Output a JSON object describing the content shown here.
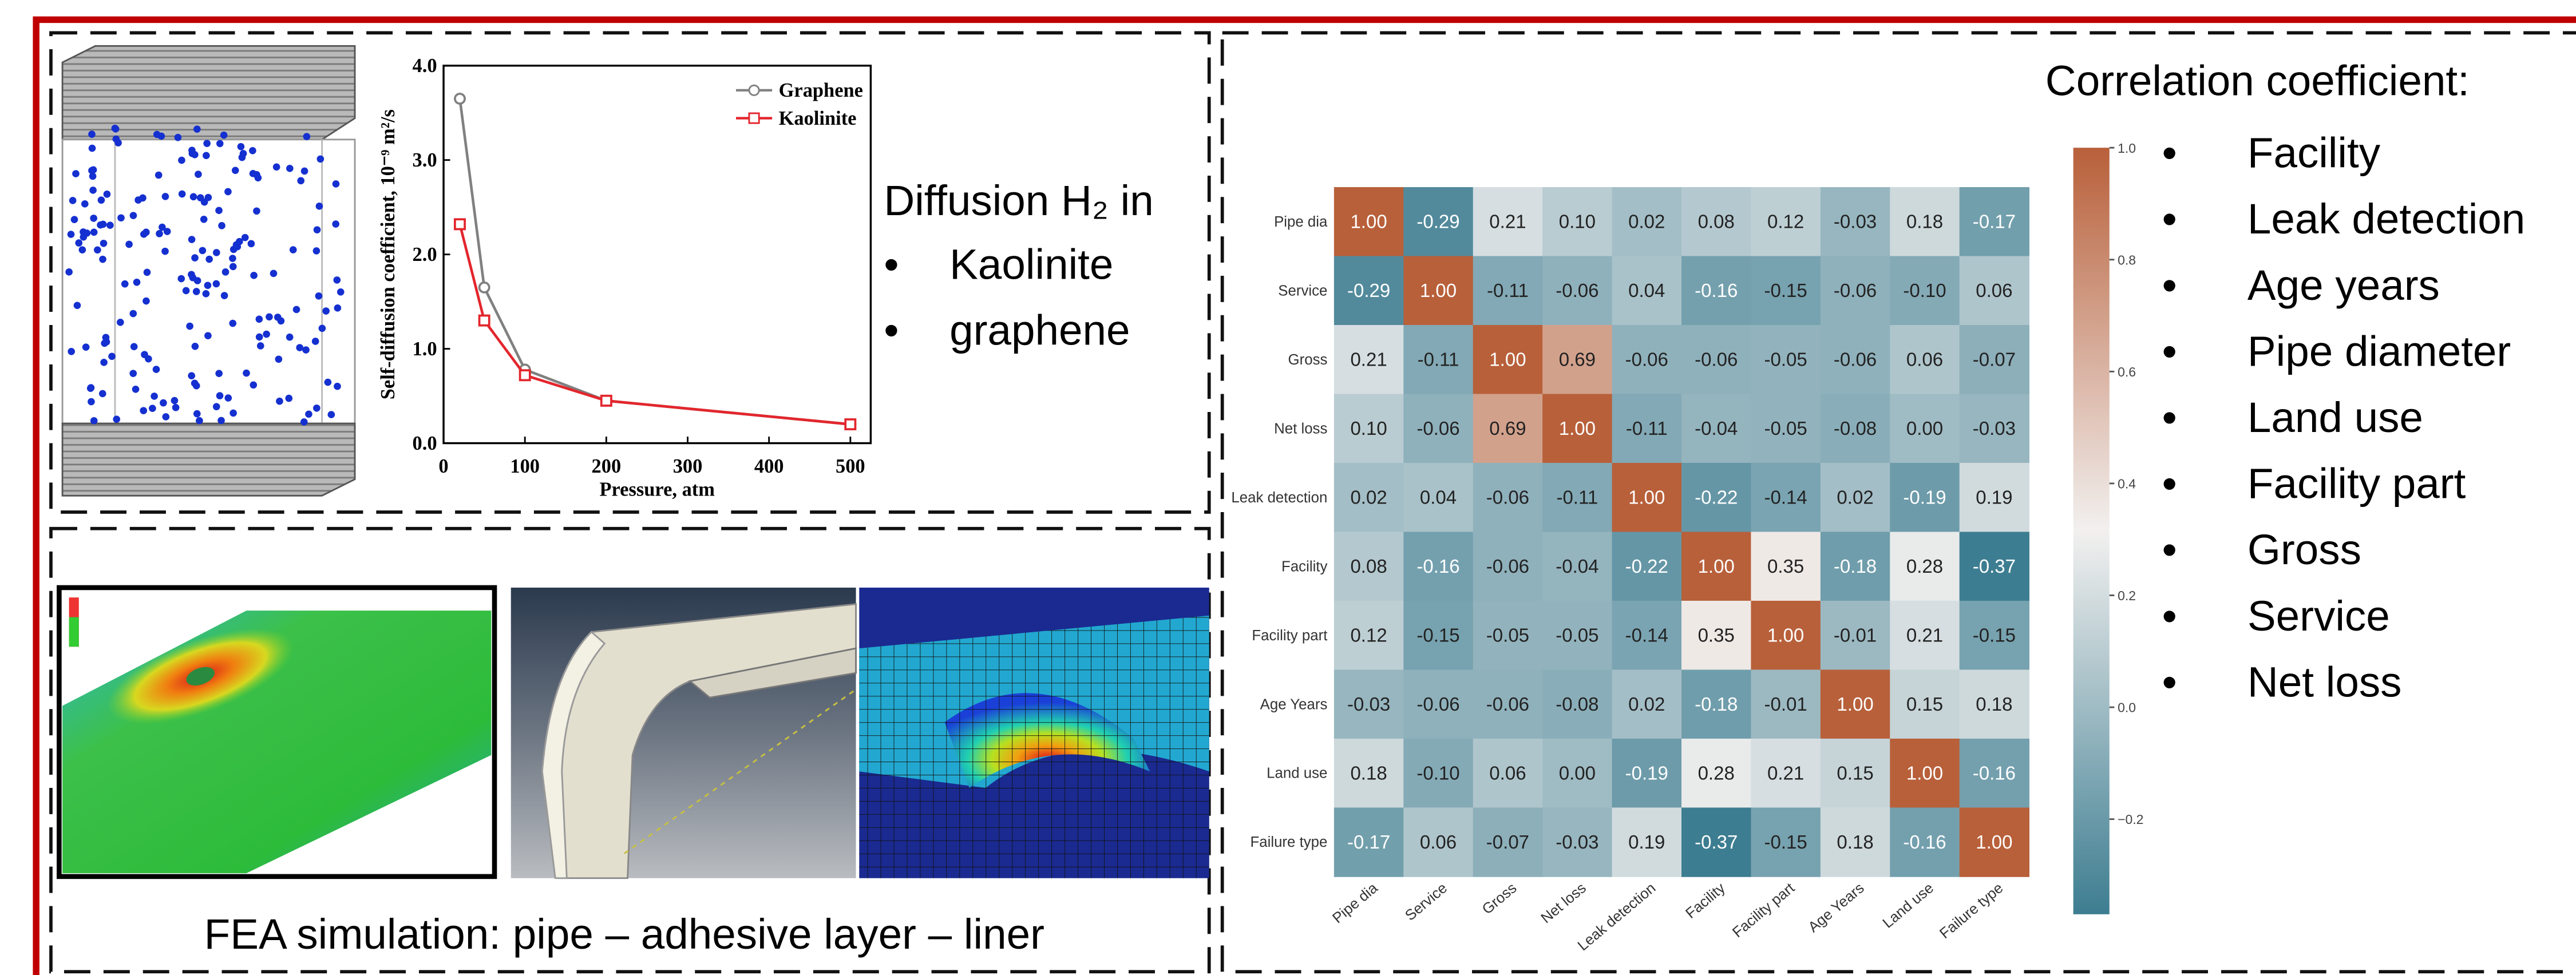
{
  "chart_data": [
    {
      "type": "line",
      "y_label": "Self-diffusion coefficient, 10⁻⁹ m²/s",
      "x_label": "Pressure, atm",
      "x": [
        20,
        50,
        100,
        200,
        500
      ],
      "xlim": [
        0,
        525
      ],
      "xticks": [
        0,
        100,
        200,
        300,
        400,
        500
      ],
      "ylim": [
        0,
        4
      ],
      "yticks": [
        {
          "value": 0,
          "label": "0.0"
        },
        {
          "value": 1,
          "label": "1.0"
        },
        {
          "value": 2,
          "label": "2.0"
        },
        {
          "value": 3,
          "label": "3.0"
        },
        {
          "value": 4,
          "label": "4.0"
        }
      ],
      "legend": "upper right",
      "series": [
        {
          "name": "Graphene",
          "color": "#808080",
          "marker": "circle",
          "values": [
            3.65,
            1.65,
            0.78,
            0.45,
            0.2
          ]
        },
        {
          "name": "Kaolinite",
          "color": "#e3262d",
          "marker": "square",
          "values": [
            2.32,
            1.3,
            0.72,
            0.45,
            0.2
          ]
        }
      ]
    },
    {
      "type": "heatmap",
      "categories": [
        "Pipe dia",
        "Service",
        "Gross",
        "Net loss",
        "Leak detection",
        "Facility",
        "Facility part",
        "Age Years",
        "Land use",
        "Failure type"
      ],
      "values": [
        [
          1.0,
          -0.29,
          0.21,
          0.1,
          0.02,
          0.08,
          0.12,
          -0.03,
          0.18,
          -0.17
        ],
        [
          -0.29,
          1.0,
          -0.11,
          -0.06,
          0.04,
          -0.16,
          -0.15,
          -0.06,
          -0.1,
          0.06
        ],
        [
          0.21,
          -0.11,
          1.0,
          0.69,
          -0.06,
          -0.06,
          -0.05,
          -0.06,
          0.06,
          -0.07
        ],
        [
          0.1,
          -0.06,
          0.69,
          1.0,
          -0.11,
          -0.04,
          -0.05,
          -0.08,
          0.0,
          -0.03
        ],
        [
          0.02,
          0.04,
          -0.06,
          -0.11,
          1.0,
          -0.22,
          -0.14,
          0.02,
          -0.19,
          0.19
        ],
        [
          0.08,
          -0.16,
          -0.06,
          -0.04,
          -0.22,
          1.0,
          0.35,
          -0.18,
          0.28,
          -0.37
        ],
        [
          0.12,
          -0.15,
          -0.05,
          -0.05,
          -0.14,
          0.35,
          1.0,
          -0.01,
          0.21,
          -0.15
        ],
        [
          -0.03,
          -0.06,
          -0.06,
          -0.08,
          0.02,
          -0.18,
          -0.01,
          1.0,
          0.15,
          0.18
        ],
        [
          0.18,
          -0.1,
          0.06,
          0.0,
          -0.19,
          0.28,
          0.21,
          0.15,
          1.0,
          -0.16
        ],
        [
          -0.17,
          0.06,
          -0.07,
          -0.03,
          0.19,
          -0.37,
          -0.15,
          0.18,
          -0.16,
          1.0
        ]
      ],
      "value_labels": [
        [
          "1.00",
          "-0.29",
          "0.21",
          "0.10",
          "0.02",
          "0.08",
          "0.12",
          "-0.03",
          "0.18",
          "-0.17"
        ],
        [
          "-0.29",
          "1.00",
          "-0.11",
          "-0.06",
          "0.04",
          "-0.16",
          "-0.15",
          "-0.06",
          "-0.10",
          "0.06"
        ],
        [
          "0.21",
          "-0.11",
          "1.00",
          "0.69",
          "-0.06",
          "-0.06",
          "-0.05",
          "-0.06",
          "0.06",
          "-0.07"
        ],
        [
          "0.10",
          "-0.06",
          "0.69",
          "1.00",
          "-0.11",
          "-0.04",
          "-0.05",
          "-0.08",
          "0.00",
          "-0.03"
        ],
        [
          "0.02",
          "0.04",
          "-0.06",
          "-0.11",
          "1.00",
          "-0.22",
          "-0.14",
          "0.02",
          "-0.19",
          "0.19"
        ],
        [
          "0.08",
          "-0.16",
          "-0.06",
          "-0.04",
          "-0.22",
          "1.00",
          "0.35",
          "-0.18",
          "0.28",
          "-0.37"
        ],
        [
          "0.12",
          "-0.15",
          "-0.05",
          "-0.05",
          "-0.14",
          "0.35",
          "1.00",
          "-0.01",
          "0.21",
          "-0.15"
        ],
        [
          "-0.03",
          "-0.06",
          "-0.06",
          "-0.08",
          "0.02",
          "-0.18",
          "-0.01",
          "1.00",
          "0.15",
          "0.18"
        ],
        [
          "0.18",
          "-0.10",
          "0.06",
          "0.00",
          "-0.19",
          "0.28",
          "0.21",
          "0.15",
          "1.00",
          "-0.16"
        ],
        [
          "-0.17",
          "0.06",
          "-0.07",
          "-0.03",
          "0.19",
          "-0.37",
          "-0.15",
          "0.18",
          "-0.16",
          "1.00"
        ]
      ],
      "zlim": [
        -0.37,
        1.0
      ],
      "zticks": [
        {
          "value": -0.2,
          "label": "−0.2"
        },
        {
          "value": 0,
          "label": "0.0"
        },
        {
          "value": 0.2,
          "label": "0.2"
        },
        {
          "value": 0.4,
          "label": "0.4"
        },
        {
          "value": 0.6,
          "label": "0.6"
        },
        {
          "value": 0.8,
          "label": "0.8"
        },
        {
          "value": 1.0,
          "label": "1.0"
        }
      ],
      "colors": [
        "#3d7d91",
        "#f2f0ef",
        "#b8603a"
      ]
    }
  ],
  "panels": {
    "diffusion": {
      "title": "Diffusion H₂ in",
      "items": [
        "Kaolinite",
        "graphene"
      ]
    },
    "fea": {
      "caption": "FEA simulation: pipe – adhesive layer – liner"
    },
    "correlation": {
      "title": "Correlation coefficient:",
      "items": [
        "Facility",
        "Leak detection",
        "Age years",
        "Pipe diameter",
        "Land use",
        "Facility part",
        "Gross",
        "Service",
        "Net loss"
      ]
    }
  }
}
